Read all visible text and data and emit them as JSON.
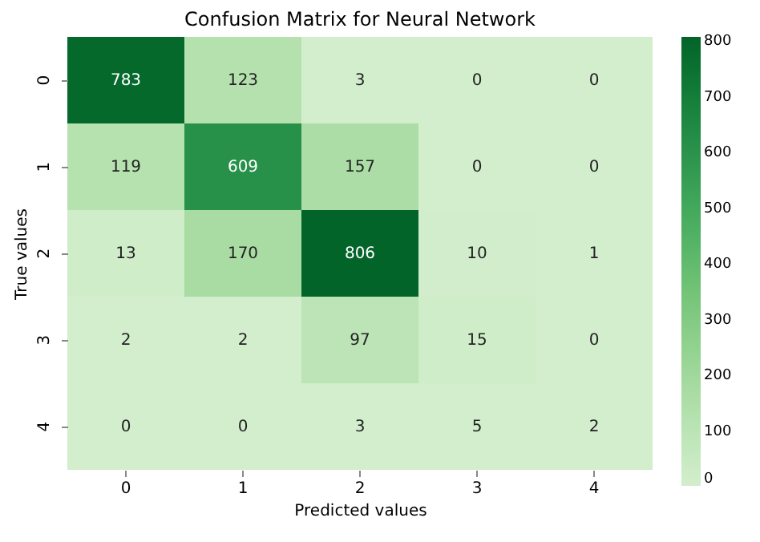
{
  "chart_data": {
    "type": "heatmap",
    "title": "Confusion Matrix for Neural Network",
    "xlabel": "Predicted values",
    "ylabel": "True values",
    "categories": [
      "0",
      "1",
      "2",
      "3",
      "4"
    ],
    "y_categories": [
      "0",
      "1",
      "2",
      "3",
      "4"
    ],
    "cells": [
      [
        783,
        123,
        3,
        0,
        0
      ],
      [
        119,
        609,
        157,
        0,
        0
      ],
      [
        13,
        170,
        806,
        10,
        1
      ],
      [
        2,
        2,
        97,
        15,
        0
      ],
      [
        0,
        0,
        3,
        5,
        2
      ]
    ],
    "clim": [
      0,
      806
    ],
    "cticks": [
      0,
      100,
      200,
      300,
      400,
      500,
      600,
      700,
      800
    ],
    "data_labels": true
  }
}
